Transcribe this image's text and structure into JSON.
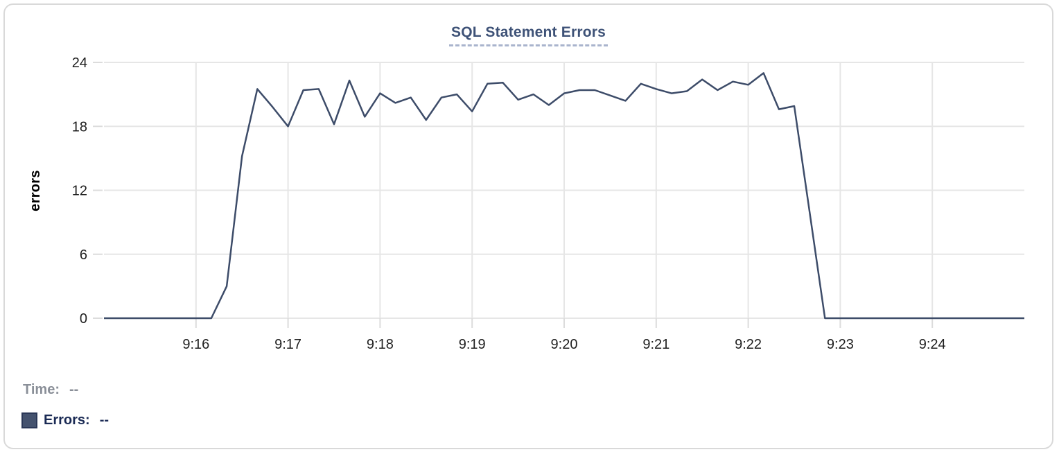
{
  "title": "SQL Statement Errors",
  "colors": {
    "line": "#3d4c69",
    "title_text": "#3e5277",
    "title_underline": "#a9b4cd",
    "grid": "#e6e6e6",
    "tick_mark": "#dcdcdc",
    "tick_text": "#1f1f1f",
    "time_label": "#8a8f98",
    "errors_label": "#1b2b55",
    "legend_swatch": "#44526e",
    "card_border": "#d9d9d9",
    "background": "#ffffff"
  },
  "chart_data": {
    "type": "line",
    "title": "SQL Statement Errors",
    "xlabel": "",
    "ylabel": "errors",
    "ylim": [
      0,
      24
    ],
    "y_ticks": [
      0,
      6,
      12,
      18,
      24
    ],
    "x_ticks": [
      "9:16",
      "9:17",
      "9:18",
      "9:19",
      "9:20",
      "9:21",
      "9:22",
      "9:23",
      "9:24"
    ],
    "grid": true,
    "legend_position": "bottom-left",
    "series": [
      {
        "name": "Errors",
        "points": [
          [
            "9:15:00",
            0
          ],
          [
            "9:15:10",
            0
          ],
          [
            "9:15:20",
            0
          ],
          [
            "9:15:30",
            0
          ],
          [
            "9:15:40",
            0
          ],
          [
            "9:15:50",
            0
          ],
          [
            "9:16:00",
            0
          ],
          [
            "9:16:10",
            0
          ],
          [
            "9:16:20",
            3
          ],
          [
            "9:16:30",
            15.2
          ],
          [
            "9:16:40",
            21.5
          ],
          [
            "9:16:50",
            19.8
          ],
          [
            "9:17:00",
            18
          ],
          [
            "9:17:10",
            21.4
          ],
          [
            "9:17:20",
            21.5
          ],
          [
            "9:17:30",
            18.2
          ],
          [
            "9:17:40",
            22.3
          ],
          [
            "9:17:50",
            18.9
          ],
          [
            "9:18:00",
            21.1
          ],
          [
            "9:18:10",
            20.2
          ],
          [
            "9:18:20",
            20.7
          ],
          [
            "9:18:30",
            18.6
          ],
          [
            "9:18:40",
            20.7
          ],
          [
            "9:18:50",
            21.0
          ],
          [
            "9:19:00",
            19.4
          ],
          [
            "9:19:10",
            22.0
          ],
          [
            "9:19:20",
            22.1
          ],
          [
            "9:19:30",
            20.5
          ],
          [
            "9:19:40",
            21.0
          ],
          [
            "9:19:50",
            20.0
          ],
          [
            "9:20:00",
            21.1
          ],
          [
            "9:20:10",
            21.4
          ],
          [
            "9:20:20",
            21.4
          ],
          [
            "9:20:30",
            20.9
          ],
          [
            "9:20:40",
            20.4
          ],
          [
            "9:20:50",
            22.0
          ],
          [
            "9:21:00",
            21.5
          ],
          [
            "9:21:10",
            21.1
          ],
          [
            "9:21:20",
            21.3
          ],
          [
            "9:21:30",
            22.4
          ],
          [
            "9:21:40",
            21.4
          ],
          [
            "9:21:50",
            22.2
          ],
          [
            "9:22:00",
            21.9
          ],
          [
            "9:22:10",
            23.0
          ],
          [
            "9:22:20",
            19.6
          ],
          [
            "9:22:30",
            19.9
          ],
          [
            "9:22:40",
            10
          ],
          [
            "9:22:50",
            0
          ],
          [
            "9:23:00",
            0
          ],
          [
            "9:23:10",
            0
          ],
          [
            "9:23:20",
            0
          ],
          [
            "9:23:30",
            0
          ],
          [
            "9:23:40",
            0
          ],
          [
            "9:23:50",
            0
          ],
          [
            "9:24:00",
            0
          ],
          [
            "9:24:10",
            0
          ],
          [
            "9:24:20",
            0
          ],
          [
            "9:24:30",
            0
          ],
          [
            "9:24:40",
            0
          ],
          [
            "9:24:50",
            0
          ],
          [
            "9:25:00",
            0
          ]
        ]
      }
    ]
  },
  "tooltip_readout": {
    "time_label": "Time:",
    "time_value": "--",
    "errors_label": "Errors:",
    "errors_value": "--"
  }
}
